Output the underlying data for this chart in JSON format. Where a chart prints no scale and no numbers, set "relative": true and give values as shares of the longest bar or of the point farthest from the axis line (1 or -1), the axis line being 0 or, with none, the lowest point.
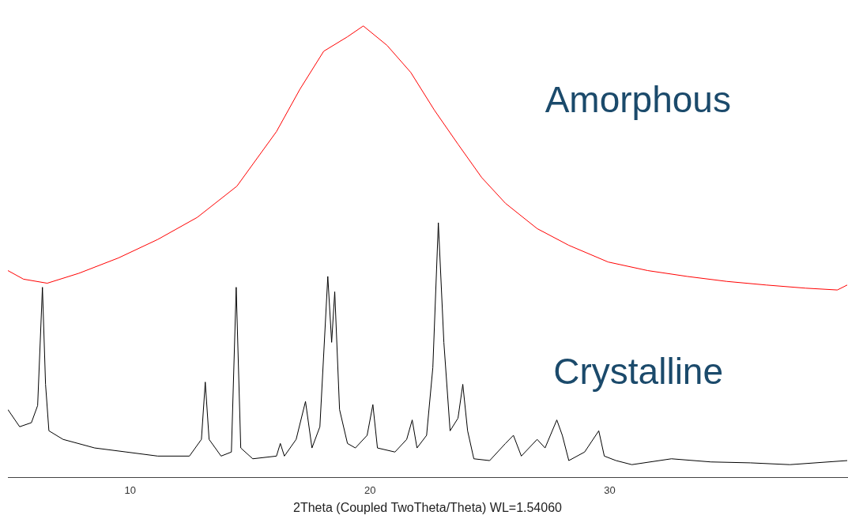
{
  "chart_data": {
    "type": "line",
    "relative": true,
    "xlabel": "2Theta (Coupled TwoTheta/Theta) WL=1.54060",
    "xlim": [
      4.9,
      39.9
    ],
    "xticks": [
      10,
      20,
      30
    ],
    "grid": false,
    "legend": false,
    "marker": "none",
    "line_style": "solid",
    "series": [
      {
        "name": "Amorphous",
        "color": "#ff0000",
        "x": [
          4.9,
          5.55,
          6.54,
          7.86,
          9.51,
          11.15,
          12.8,
          14.45,
          16.1,
          17.08,
          18.07,
          19.06,
          19.72,
          20.71,
          21.7,
          22.69,
          23.67,
          24.66,
          25.65,
          26.97,
          28.29,
          29.93,
          31.58,
          33.23,
          34.88,
          36.52,
          38.17,
          39.49,
          39.9
        ],
        "values": [
          0.458,
          0.439,
          0.43,
          0.452,
          0.486,
          0.527,
          0.576,
          0.645,
          0.766,
          0.86,
          0.944,
          0.976,
          1.0,
          0.957,
          0.897,
          0.813,
          0.738,
          0.664,
          0.607,
          0.551,
          0.514,
          0.477,
          0.458,
          0.445,
          0.434,
          0.426,
          0.419,
          0.415,
          0.426
        ]
      },
      {
        "name": "Crystalline",
        "color": "#000000",
        "x": [
          4.9,
          5.39,
          5.88,
          6.14,
          6.34,
          6.47,
          6.61,
          7.2,
          8.52,
          9.84,
          11.15,
          12.47,
          12.97,
          13.13,
          13.29,
          13.79,
          14.22,
          14.42,
          14.61,
          15.11,
          16.1,
          16.26,
          16.43,
          16.92,
          17.31,
          17.58,
          17.91,
          18.24,
          18.4,
          18.53,
          18.73,
          19.06,
          19.39,
          19.88,
          20.12,
          20.31,
          21.04,
          21.53,
          21.76,
          21.96,
          22.36,
          22.62,
          22.85,
          23.08,
          23.34,
          23.67,
          23.87,
          24.07,
          24.33,
          24.99,
          25.65,
          25.98,
          26.31,
          26.97,
          27.3,
          27.79,
          28.02,
          28.29,
          28.95,
          29.54,
          29.77,
          30.26,
          30.92,
          32.57,
          34.22,
          35.86,
          37.51,
          39.9
        ],
        "values": [
          0.15,
          0.112,
          0.121,
          0.159,
          0.421,
          0.206,
          0.103,
          0.084,
          0.065,
          0.056,
          0.047,
          0.047,
          0.084,
          0.211,
          0.084,
          0.047,
          0.056,
          0.421,
          0.065,
          0.041,
          0.047,
          0.075,
          0.047,
          0.084,
          0.168,
          0.065,
          0.112,
          0.445,
          0.299,
          0.411,
          0.15,
          0.075,
          0.065,
          0.093,
          0.161,
          0.065,
          0.056,
          0.084,
          0.127,
          0.065,
          0.093,
          0.243,
          0.564,
          0.299,
          0.103,
          0.131,
          0.206,
          0.103,
          0.041,
          0.037,
          0.075,
          0.093,
          0.047,
          0.084,
          0.065,
          0.127,
          0.093,
          0.037,
          0.056,
          0.103,
          0.047,
          0.037,
          0.028,
          0.041,
          0.034,
          0.032,
          0.028,
          0.037
        ]
      }
    ]
  }
}
